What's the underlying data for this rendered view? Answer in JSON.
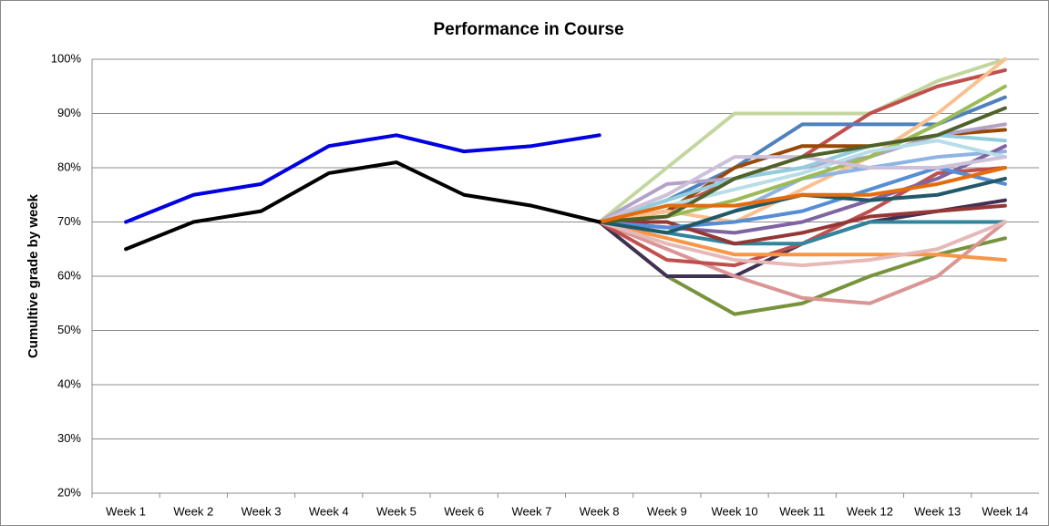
{
  "chart_data": {
    "type": "line",
    "title": "Performance in Course",
    "y_label": "Cumultive grade by week",
    "categories": [
      "Week 1",
      "Week 2",
      "Week 3",
      "Week 4",
      "Week 5",
      "Week 6",
      "Week 7",
      "Week 8",
      "Week 9",
      "Week 10",
      "Week 11",
      "Week 12",
      "Week 13",
      "Week 14"
    ],
    "ylim": [
      20,
      100
    ],
    "yticks": [
      {
        "value": 20,
        "label": "20%"
      },
      {
        "value": 30,
        "label": "30%"
      },
      {
        "value": 40,
        "label": "40%"
      },
      {
        "value": 50,
        "label": "50%"
      },
      {
        "value": 60,
        "label": "60%"
      },
      {
        "value": 70,
        "label": "70%"
      },
      {
        "value": 80,
        "label": "80%"
      },
      {
        "value": 90,
        "label": "90%"
      },
      {
        "value": 100,
        "label": "100%"
      }
    ],
    "grid": true,
    "series": [
      {
        "color": "#c4d6a0",
        "values": [
          null,
          null,
          null,
          null,
          null,
          null,
          null,
          70,
          80,
          90,
          90,
          90,
          96,
          100
        ]
      },
      {
        "color": "#77933c",
        "values": [
          null,
          null,
          null,
          null,
          null,
          null,
          null,
          70,
          60,
          53,
          55,
          60,
          64,
          67
        ]
      },
      {
        "color": "#403152",
        "values": [
          null,
          null,
          null,
          null,
          null,
          null,
          null,
          70,
          60,
          60,
          66,
          70,
          72,
          74
        ]
      },
      {
        "color": "#d99694",
        "values": [
          null,
          null,
          null,
          null,
          null,
          null,
          null,
          70,
          65,
          60,
          56,
          55,
          60,
          70
        ]
      },
      {
        "color": "#c0504d",
        "values": [
          null,
          null,
          null,
          null,
          null,
          null,
          null,
          70,
          63,
          62,
          66,
          72,
          79,
          80
        ]
      },
      {
        "color": "#c0504d",
        "values": [
          null,
          null,
          null,
          null,
          null,
          null,
          null,
          70,
          72,
          78,
          82,
          90,
          95,
          98
        ]
      },
      {
        "color": "#4f81bd",
        "values": [
          null,
          null,
          null,
          null,
          null,
          null,
          null,
          70,
          74,
          80,
          88,
          88,
          88,
          93
        ]
      },
      {
        "color": "#984807",
        "values": [
          null,
          null,
          null,
          null,
          null,
          null,
          null,
          70,
          72,
          80,
          84,
          84,
          86,
          87
        ]
      },
      {
        "color": "#f79646",
        "values": [
          null,
          null,
          null,
          null,
          null,
          null,
          null,
          70,
          67,
          64,
          64,
          64,
          64,
          63
        ]
      },
      {
        "color": "#31859c",
        "values": [
          null,
          null,
          null,
          null,
          null,
          null,
          null,
          70,
          68,
          66,
          66,
          70,
          70,
          70
        ]
      },
      {
        "color": "#fac090",
        "values": [
          null,
          null,
          null,
          null,
          null,
          null,
          null,
          70,
          72,
          70,
          76,
          82,
          90,
          100
        ]
      },
      {
        "color": "#b3a2c7",
        "values": [
          null,
          null,
          null,
          null,
          null,
          null,
          null,
          70,
          77,
          78,
          80,
          82,
          86,
          88
        ]
      },
      {
        "color": "#93cddd",
        "values": [
          null,
          null,
          null,
          null,
          null,
          null,
          null,
          70,
          74,
          78,
          80,
          84,
          86,
          85
        ]
      },
      {
        "color": "#8eb4e3",
        "values": [
          null,
          null,
          null,
          null,
          null,
          null,
          null,
          70,
          68,
          72,
          78,
          80,
          82,
          83
        ]
      },
      {
        "color": "#e6b9b8",
        "values": [
          null,
          null,
          null,
          null,
          null,
          null,
          null,
          70,
          66,
          63,
          62,
          63,
          65,
          70
        ]
      },
      {
        "color": "#8064a2",
        "values": [
          null,
          null,
          null,
          null,
          null,
          null,
          null,
          70,
          69,
          68,
          70,
          74,
          78,
          84
        ]
      },
      {
        "color": "#9bbb59",
        "values": [
          null,
          null,
          null,
          null,
          null,
          null,
          null,
          70,
          71,
          74,
          78,
          82,
          88,
          95
        ]
      },
      {
        "color": "#953735",
        "values": [
          null,
          null,
          null,
          null,
          null,
          null,
          null,
          70,
          70,
          66,
          68,
          71,
          72,
          73
        ]
      },
      {
        "color": "#b7dee8",
        "values": [
          null,
          null,
          null,
          null,
          null,
          null,
          null,
          70,
          73,
          76,
          79,
          83,
          85,
          82
        ]
      },
      {
        "color": "#558ed5",
        "values": [
          null,
          null,
          null,
          null,
          null,
          null,
          null,
          70,
          69,
          70,
          72,
          76,
          80,
          77
        ]
      },
      {
        "color": "#ccc1da",
        "values": [
          null,
          null,
          null,
          null,
          null,
          null,
          null,
          70,
          75,
          82,
          82,
          80,
          80,
          82
        ]
      },
      {
        "color": "#215968",
        "values": [
          null,
          null,
          null,
          null,
          null,
          null,
          null,
          70,
          68,
          72,
          75,
          74,
          75,
          78
        ]
      },
      {
        "color": "#4f6228",
        "values": [
          null,
          null,
          null,
          null,
          null,
          null,
          null,
          70,
          71,
          78,
          82,
          84,
          86,
          91
        ]
      },
      {
        "color": "#e46c0a",
        "values": [
          null,
          null,
          null,
          null,
          null,
          null,
          null,
          70,
          73,
          73,
          75,
          75,
          77,
          80
        ]
      },
      {
        "color": "#0000e0",
        "values": [
          70,
          75,
          77,
          84,
          86,
          83,
          84,
          86,
          null,
          null,
          null,
          null,
          null,
          null
        ]
      },
      {
        "color": "#000000",
        "values": [
          65,
          70,
          72,
          79,
          81,
          75,
          73,
          70,
          null,
          null,
          null,
          null,
          null,
          null
        ]
      }
    ]
  }
}
